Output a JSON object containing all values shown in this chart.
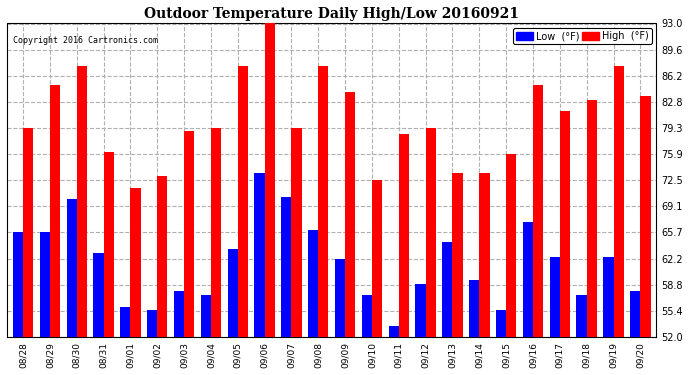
{
  "title": "Outdoor Temperature Daily High/Low 20160921",
  "copyright": "Copyright 2016 Cartronics.com",
  "categories": [
    "08/28",
    "08/29",
    "08/30",
    "08/31",
    "09/01",
    "09/02",
    "09/03",
    "09/04",
    "09/05",
    "09/06",
    "09/07",
    "09/08",
    "09/09",
    "09/10",
    "09/11",
    "09/12",
    "09/13",
    "09/14",
    "09/15",
    "09/16",
    "09/17",
    "09/18",
    "09/19",
    "09/20"
  ],
  "high_values": [
    79.3,
    84.9,
    87.5,
    76.2,
    71.5,
    73.1,
    79.0,
    79.3,
    87.5,
    93.0,
    79.3,
    87.5,
    84.0,
    72.5,
    78.5,
    79.3,
    73.5,
    73.5,
    75.9,
    84.9,
    81.5,
    83.0,
    87.5,
    83.5
  ],
  "low_values": [
    65.7,
    65.7,
    70.0,
    63.0,
    56.0,
    55.5,
    58.0,
    57.5,
    63.5,
    73.5,
    70.3,
    66.0,
    62.2,
    57.5,
    53.5,
    59.0,
    64.5,
    59.5,
    55.5,
    67.0,
    62.5,
    57.5,
    62.5,
    58.0
  ],
  "ylim": [
    52.0,
    93.0
  ],
  "yticks": [
    52.0,
    55.4,
    58.8,
    62.2,
    65.7,
    69.1,
    72.5,
    75.9,
    79.3,
    82.8,
    86.2,
    89.6,
    93.0
  ],
  "high_color": "#ff0000",
  "low_color": "#0000ff",
  "bg_color": "#ffffff",
  "grid_color": "#b0b0b0",
  "bar_width": 0.38,
  "legend_low_label": "Low  (°F)",
  "legend_high_label": "High  (°F)"
}
